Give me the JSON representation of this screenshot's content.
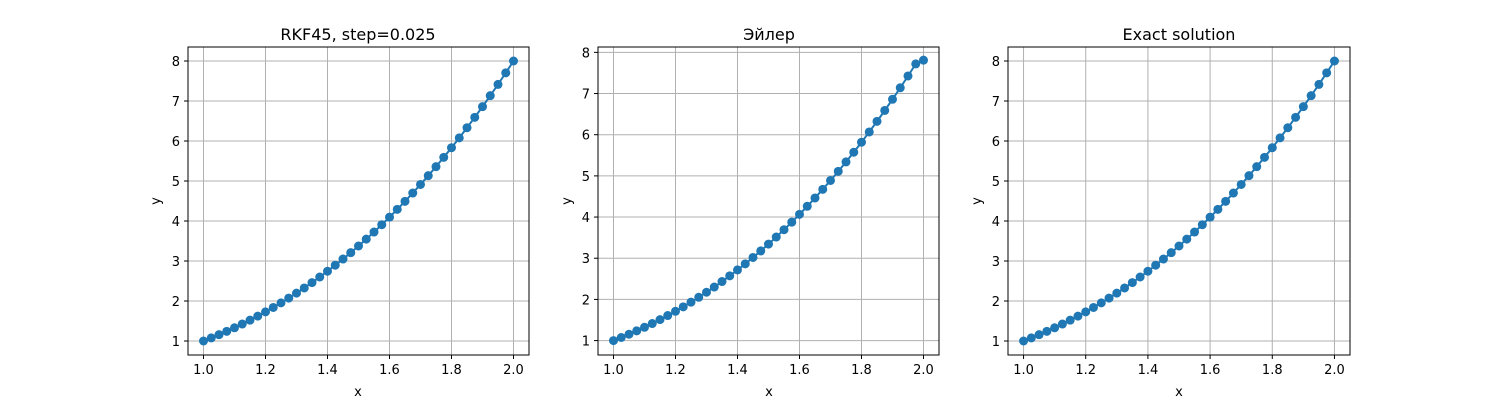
{
  "colors": {
    "series": "#1f77b4",
    "grid": "#b0b0b0",
    "axis": "#000000",
    "background": "#ffffff"
  },
  "chart_data": [
    {
      "type": "line",
      "title": "RKF45, step=0.025",
      "xlabel": "x",
      "ylabel": "y",
      "xlim": [
        0.95,
        2.05
      ],
      "ylim": [
        0.65,
        8.35
      ],
      "xticks": [
        "1.0",
        "1.2",
        "1.4",
        "1.6",
        "1.8",
        "2.0"
      ],
      "yticks": [
        "1",
        "2",
        "3",
        "4",
        "5",
        "6",
        "7",
        "8"
      ],
      "grid": true,
      "marker": "circle",
      "x": [
        1.0,
        1.025,
        1.05,
        1.075,
        1.1,
        1.125,
        1.15,
        1.175,
        1.2,
        1.225,
        1.25,
        1.275,
        1.3,
        1.325,
        1.35,
        1.375,
        1.4,
        1.425,
        1.45,
        1.475,
        1.5,
        1.525,
        1.55,
        1.575,
        1.6,
        1.625,
        1.65,
        1.675,
        1.7,
        1.725,
        1.75,
        1.775,
        1.8,
        1.825,
        1.85,
        1.875,
        1.9,
        1.925,
        1.95,
        1.975,
        2.0
      ],
      "y": [
        1.0,
        1.077,
        1.158,
        1.242,
        1.331,
        1.424,
        1.521,
        1.622,
        1.728,
        1.838,
        1.953,
        2.073,
        2.197,
        2.326,
        2.46,
        2.6,
        2.744,
        2.894,
        3.049,
        3.209,
        3.375,
        3.547,
        3.724,
        3.907,
        4.096,
        4.291,
        4.492,
        4.699,
        4.913,
        5.133,
        5.359,
        5.592,
        5.832,
        6.078,
        6.332,
        6.592,
        6.859,
        7.133,
        7.415,
        7.704,
        8.0
      ]
    },
    {
      "type": "line",
      "title": "Эйлер",
      "xlabel": "x",
      "ylabel": "y",
      "xlim": [
        0.95,
        2.05
      ],
      "ylim": [
        0.65,
        8.13
      ],
      "xticks": [
        "1.0",
        "1.2",
        "1.4",
        "1.6",
        "1.8",
        "2.0"
      ],
      "yticks": [
        "1",
        "2",
        "3",
        "4",
        "5",
        "6",
        "7",
        "8"
      ],
      "grid": true,
      "marker": "circle",
      "x": [
        1.0,
        1.025,
        1.05,
        1.075,
        1.1,
        1.125,
        1.15,
        1.175,
        1.2,
        1.225,
        1.25,
        1.275,
        1.3,
        1.325,
        1.35,
        1.375,
        1.4,
        1.425,
        1.45,
        1.475,
        1.5,
        1.525,
        1.55,
        1.575,
        1.6,
        1.625,
        1.65,
        1.675,
        1.7,
        1.725,
        1.75,
        1.775,
        1.8,
        1.825,
        1.85,
        1.875,
        1.9,
        1.925,
        1.95,
        1.975,
        2.0
      ],
      "y": [
        1.0,
        1.075,
        1.154,
        1.237,
        1.323,
        1.414,
        1.509,
        1.608,
        1.712,
        1.82,
        1.933,
        2.051,
        2.174,
        2.301,
        2.434,
        2.572,
        2.716,
        2.864,
        3.018,
        3.178,
        3.344,
        3.515,
        3.693,
        3.876,
        4.066,
        4.262,
        4.464,
        4.673,
        4.888,
        5.11,
        5.339,
        5.574,
        5.817,
        6.067,
        6.324,
        6.588,
        6.86,
        7.139,
        7.426,
        7.72,
        7.81
      ]
    },
    {
      "type": "line",
      "title": "Exact solution",
      "xlabel": "x",
      "ylabel": "y",
      "xlim": [
        0.95,
        2.05
      ],
      "ylim": [
        0.65,
        8.35
      ],
      "xticks": [
        "1.0",
        "1.2",
        "1.4",
        "1.6",
        "1.8",
        "2.0"
      ],
      "yticks": [
        "1",
        "2",
        "3",
        "4",
        "5",
        "6",
        "7",
        "8"
      ],
      "grid": true,
      "marker": "circle",
      "x": [
        1.0,
        1.025,
        1.05,
        1.075,
        1.1,
        1.125,
        1.15,
        1.175,
        1.2,
        1.225,
        1.25,
        1.275,
        1.3,
        1.325,
        1.35,
        1.375,
        1.4,
        1.425,
        1.45,
        1.475,
        1.5,
        1.525,
        1.55,
        1.575,
        1.6,
        1.625,
        1.65,
        1.675,
        1.7,
        1.725,
        1.75,
        1.775,
        1.8,
        1.825,
        1.85,
        1.875,
        1.9,
        1.925,
        1.95,
        1.975,
        2.0
      ],
      "y": [
        1.0,
        1.077,
        1.158,
        1.242,
        1.331,
        1.424,
        1.521,
        1.622,
        1.728,
        1.838,
        1.953,
        2.073,
        2.197,
        2.326,
        2.46,
        2.6,
        2.744,
        2.894,
        3.049,
        3.209,
        3.375,
        3.547,
        3.724,
        3.907,
        4.096,
        4.291,
        4.492,
        4.699,
        4.913,
        5.133,
        5.359,
        5.592,
        5.832,
        6.078,
        6.332,
        6.592,
        6.859,
        7.133,
        7.415,
        7.704,
        8.0
      ]
    }
  ]
}
